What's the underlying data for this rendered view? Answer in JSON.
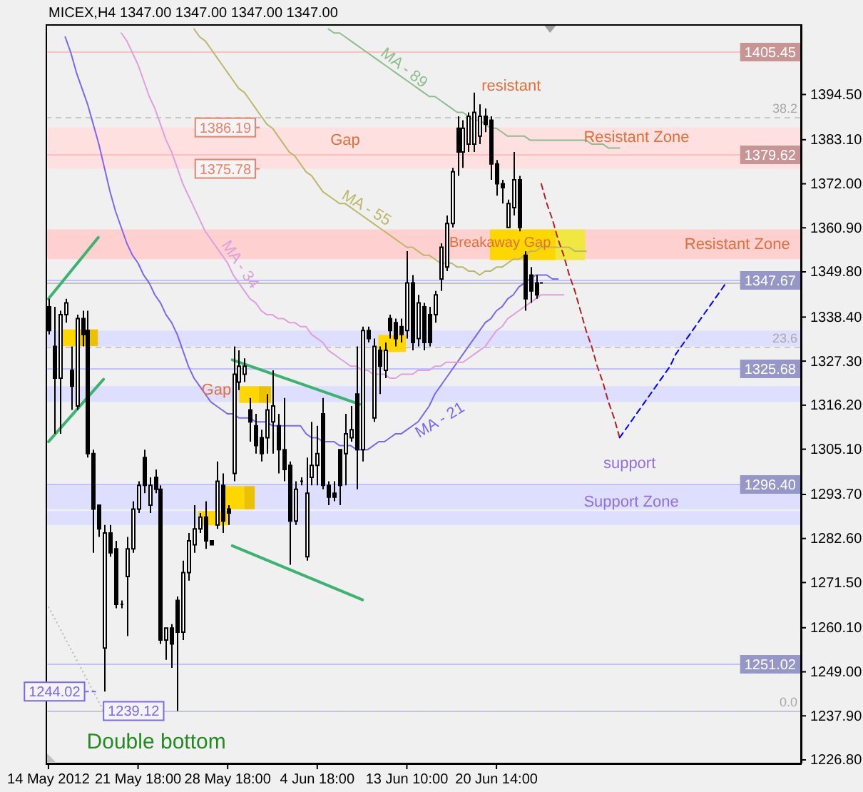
{
  "chart_data": {
    "type": "candlestick",
    "title": "MICEX,H4 1347.00 1347.00 1347.00 1347.00",
    "categories": [
      "14 May 2012",
      null,
      null,
      null,
      null,
      null,
      null,
      null,
      null,
      null,
      null,
      null,
      null,
      null,
      null,
      null,
      "21 May 18:00",
      null,
      null,
      null,
      null,
      null,
      null,
      null,
      null,
      null,
      null,
      null,
      null,
      null,
      null,
      null,
      "28 May 18:00",
      null,
      null,
      null,
      null,
      null,
      null,
      null,
      null,
      null,
      null,
      null,
      null,
      null,
      null,
      null,
      "4 Jun 18:00",
      null,
      null,
      null,
      null,
      null,
      null,
      null,
      null,
      null,
      null,
      null,
      null,
      null,
      null,
      null,
      "13 Jun 10:00",
      null,
      null,
      null,
      null,
      null,
      null,
      null,
      null,
      null,
      null,
      null,
      null,
      null,
      null,
      null,
      "20 Jun 14:00",
      null,
      null,
      null,
      null,
      null,
      null,
      null,
      null,
      null,
      null,
      null,
      null,
      null,
      null,
      null,
      null,
      null,
      null,
      null,
      null,
      null,
      null,
      null,
      null,
      null,
      null,
      null,
      null,
      null,
      null,
      null,
      null,
      null,
      null,
      null,
      null,
      null,
      null,
      null,
      null,
      null,
      null,
      null,
      null,
      null,
      null,
      null,
      null,
      null,
      null,
      null,
      null,
      null,
      null
    ],
    "ohlc": [
      [
        1341,
        1343,
        1334,
        1335
      ],
      [
        1331,
        1341,
        1309,
        1323
      ],
      [
        1323,
        1340,
        1309,
        1339
      ],
      [
        1339,
        1343,
        1337,
        1342
      ],
      [
        1325,
        1331,
        1315,
        1321
      ],
      [
        1316,
        1339,
        1315,
        1338
      ],
      [
        1338,
        1340,
        1331,
        1334
      ],
      [
        1335,
        1340,
        1303,
        1304
      ],
      [
        1304,
        1305,
        1279,
        1290
      ],
      [
        1291,
        1291,
        1283,
        1285
      ],
      [
        1255,
        1286,
        1244.02,
        1284
      ],
      [
        1284,
        1286,
        1278,
        1279
      ],
      [
        1280,
        1282,
        1265,
        1266
      ],
      [
        1266,
        1267,
        1265,
        1266
      ],
      [
        1273,
        1283,
        1258,
        1280
      ],
      [
        1280,
        1292,
        1279,
        1290
      ],
      [
        1290,
        1297,
        1289,
        1296
      ],
      [
        1303,
        1305,
        1294,
        1296
      ],
      [
        1291,
        1298,
        1289,
        1296
      ],
      [
        1298,
        1300,
        1294,
        1295
      ],
      [
        1295,
        1296,
        1256,
        1257
      ],
      [
        1257,
        1260,
        1252,
        1260
      ],
      [
        1260,
        1261,
        1250,
        1256
      ],
      [
        1267,
        1268,
        1239.12,
        1259
      ],
      [
        1259,
        1277,
        1257,
        1274
      ],
      [
        1274,
        1284,
        1272,
        1282
      ],
      [
        1281,
        1291,
        1279,
        1285
      ],
      [
        1285,
        1289,
        1284,
        1288
      ],
      [
        1288,
        1292,
        1280,
        1282
      ],
      [
        1282,
        1282,
        1281,
        1281
      ],
      [
        1286,
        1302,
        1285,
        1297
      ],
      [
        1296,
        1299,
        1284,
        1287
      ],
      [
        1290,
        1291,
        1286,
        1289
      ],
      [
        1299,
        1331,
        1297,
        1324
      ],
      [
        1322,
        1330,
        1320,
        1326
      ],
      [
        1324,
        1328,
        1322,
        1326
      ],
      [
        1315,
        1318,
        1307,
        1312
      ],
      [
        1311,
        1314,
        1304,
        1306
      ],
      [
        1308,
        1310,
        1302,
        1304
      ],
      [
        1308,
        1319,
        1304,
        1315
      ],
      [
        1312,
        1325,
        1304,
        1316
      ],
      [
        1311,
        1314,
        1299,
        1305
      ],
      [
        1305,
        1318,
        1297,
        1300
      ],
      [
        1301,
        1302,
        1276,
        1287
      ],
      [
        1287,
        1297,
        1286,
        1295
      ],
      [
        1297,
        1298,
        1296,
        1297
      ],
      [
        1278,
        1303,
        1277,
        1294
      ],
      [
        1298,
        1312,
        1296,
        1301
      ],
      [
        1301,
        1311,
        1296,
        1304
      ],
      [
        1314,
        1318,
        1295,
        1296
      ],
      [
        1296,
        1297,
        1291,
        1293
      ],
      [
        1294,
        1297,
        1292,
        1293
      ],
      [
        1305,
        1305,
        1291,
        1296
      ],
      [
        1304,
        1314,
        1296,
        1309
      ],
      [
        1308,
        1316,
        1307,
        1310
      ],
      [
        1319,
        1331,
        1295,
        1305
      ],
      [
        1305,
        1336,
        1302,
        1335
      ],
      [
        1335,
        1336,
        1332,
        1333
      ],
      [
        1313,
        1333,
        1312,
        1331
      ],
      [
        1330,
        1331,
        1319,
        1326
      ],
      [
        1325,
        1332,
        1323,
        1330
      ],
      [
        1338,
        1339,
        1333,
        1335
      ],
      [
        1337,
        1338,
        1331,
        1333
      ],
      [
        1336,
        1338,
        1332,
        1334
      ],
      [
        1335,
        1355,
        1333,
        1347
      ],
      [
        1347,
        1349,
        1330,
        1332
      ],
      [
        1333,
        1344,
        1331,
        1342
      ],
      [
        1341,
        1342,
        1330,
        1332
      ],
      [
        1339,
        1341,
        1331,
        1332
      ],
      [
        1339,
        1345,
        1337,
        1344
      ],
      [
        1348,
        1357,
        1345,
        1356
      ],
      [
        1351,
        1364,
        1350,
        1362
      ],
      [
        1362,
        1376,
        1361,
        1375
      ],
      [
        1386,
        1389,
        1374,
        1380
      ],
      [
        1380,
        1388,
        1376,
        1386
      ],
      [
        1382,
        1390,
        1380,
        1389
      ],
      [
        1382,
        1395,
        1380,
        1390
      ],
      [
        1384,
        1392,
        1382,
        1389
      ],
      [
        1389,
        1391,
        1385,
        1387
      ],
      [
        1388,
        1389,
        1373,
        1377
      ],
      [
        1377,
        1378,
        1369,
        1372
      ],
      [
        1372,
        1373,
        1367,
        1371
      ],
      [
        1361,
        1368,
        1361,
        1367
      ],
      [
        1366,
        1380,
        1364,
        1373
      ],
      [
        1373,
        1374,
        1360,
        1361
      ],
      [
        1354,
        1355,
        1340,
        1343
      ],
      [
        1349,
        1351,
        1342,
        1345
      ],
      [
        1347,
        1349,
        1343,
        1344
      ],
      [
        1347,
        1347,
        1347,
        1347
      ],
      null,
      null,
      null,
      null,
      null,
      null,
      null,
      null,
      null,
      null,
      null,
      null,
      null,
      null,
      null,
      null,
      null,
      null,
      null,
      null,
      null,
      null,
      null,
      null,
      null,
      null,
      null,
      null,
      null,
      null,
      null,
      null,
      null,
      null,
      null,
      null,
      null,
      null,
      null,
      null,
      null,
      null,
      null,
      null,
      null,
      null
    ],
    "series": [
      {
        "name": "MA - 21",
        "type": "line",
        "color": "#7b68ee",
        "values": [
          null,
          null,
          null,
          1409,
          1405,
          1400,
          1396,
          1392,
          1387,
          1382,
          1376,
          1370,
          1365,
          1361,
          1357,
          1354,
          1352,
          1349,
          1347,
          1344,
          1342,
          1339,
          1337,
          1334,
          1330,
          1326,
          1323,
          1321,
          1319,
          1317,
          1316,
          1315,
          1314,
          1314,
          1313,
          1313,
          1313,
          1312,
          1312,
          1312,
          1311,
          1311,
          1311,
          1311,
          1311,
          1311,
          1309,
          1308,
          1308,
          1307,
          1307,
          1307,
          1306,
          1306,
          1306,
          1305,
          1305,
          1305,
          1306,
          1307,
          1307,
          1308,
          1309,
          1309,
          1310,
          1311,
          1312,
          1314,
          1316,
          1319,
          1321,
          1323,
          1325,
          1327,
          1329,
          1331,
          1333,
          1335,
          1337,
          1338,
          1340,
          1341,
          1343,
          1344,
          1346,
          1347,
          1348,
          1349,
          1349,
          1349,
          1348,
          1348,
          null,
          null,
          null,
          null,
          null,
          null,
          null,
          null,
          null,
          null,
          null,
          null,
          null,
          null,
          null,
          null,
          null,
          null,
          null,
          null,
          null,
          null,
          null,
          null,
          null,
          null,
          null,
          null,
          null,
          null,
          null,
          null,
          null,
          null,
          null,
          null,
          null,
          null,
          null,
          null,
          null,
          null,
          null
        ]
      },
      {
        "name": "MA - 34",
        "type": "line",
        "color": "#dda0dd",
        "values": [
          null,
          null,
          null,
          null,
          null,
          null,
          null,
          null,
          null,
          null,
          null,
          null,
          null,
          1410,
          1408,
          1405,
          1402,
          1398,
          1394,
          1391,
          1387,
          1383,
          1380,
          1376,
          1372,
          1369,
          1366,
          1363,
          1360,
          1358,
          1356,
          1354,
          1352,
          1349,
          1347,
          1345,
          1343,
          1342,
          1340,
          1339,
          1339,
          1338,
          1338,
          1337,
          1337,
          1336,
          1336,
          1334,
          1333,
          1332,
          1330,
          1329,
          1328,
          1327,
          1326,
          1326,
          1325,
          1325,
          1324,
          1324,
          1324,
          1323,
          1323,
          1324,
          1324,
          1324,
          1325,
          1325,
          1325,
          1326,
          1326,
          1327,
          1327,
          1327,
          1327,
          1328,
          1329,
          1330,
          1331,
          1333,
          1335,
          1336,
          1338,
          1339,
          1340,
          1341,
          1342,
          1343,
          1344,
          1344,
          1344,
          1344,
          1344,
          null,
          null,
          null,
          null,
          null,
          null,
          null,
          null,
          null,
          null,
          null,
          null,
          null,
          null,
          null,
          null,
          null,
          null,
          null,
          null,
          null,
          null,
          null,
          null,
          null,
          null,
          null,
          null,
          null,
          null,
          null,
          null,
          null,
          null,
          null,
          null,
          null,
          null,
          null,
          null,
          null,
          null
        ]
      },
      {
        "name": "MA - 55",
        "type": "line",
        "color": "#bdb76b",
        "values": [
          null,
          null,
          null,
          null,
          null,
          null,
          null,
          null,
          null,
          null,
          null,
          null,
          null,
          null,
          null,
          null,
          null,
          null,
          null,
          null,
          null,
          null,
          null,
          null,
          null,
          null,
          1411,
          1409,
          1408,
          1406,
          1404,
          1402,
          1400,
          1398,
          1396,
          1395,
          1393,
          1391,
          1389,
          1387,
          1386,
          1384,
          1382,
          1380,
          1379,
          1377,
          1375,
          1374,
          1372,
          1370,
          1369,
          1368,
          1367,
          1367,
          1366,
          1365,
          1364,
          1363,
          1362,
          1361,
          1360,
          1359,
          1358,
          1357,
          1356,
          1356,
          1355,
          1354,
          1354,
          1353,
          1352,
          1352,
          1352,
          1351,
          1351,
          1350,
          1350,
          1349,
          1350,
          1350,
          1351,
          1351,
          1352,
          1353,
          1353,
          1354,
          1355,
          1355,
          1356,
          1356,
          1356,
          1356,
          1356,
          1356,
          1355,
          1355,
          1355,
          null,
          null,
          null,
          null,
          null,
          null,
          null,
          null,
          null,
          null,
          null,
          null,
          null,
          null,
          null,
          null,
          null,
          null,
          null,
          null,
          null,
          null,
          null,
          null,
          null,
          null,
          null,
          null,
          null,
          null,
          null,
          null,
          null,
          null,
          null,
          null,
          null,
          null
        ]
      },
      {
        "name": "MA - 89",
        "type": "line",
        "color": "#8fbc8f",
        "values": [
          null,
          null,
          null,
          null,
          null,
          null,
          null,
          null,
          null,
          null,
          null,
          null,
          null,
          null,
          null,
          null,
          null,
          null,
          null,
          null,
          null,
          null,
          null,
          null,
          null,
          null,
          null,
          null,
          null,
          null,
          null,
          null,
          null,
          null,
          null,
          null,
          null,
          null,
          null,
          null,
          null,
          null,
          null,
          null,
          null,
          null,
          null,
          null,
          null,
          null,
          1411,
          1410,
          1410,
          1409,
          1408,
          1407,
          1406,
          1405,
          1404,
          1403,
          1402,
          1401,
          1400,
          1399,
          1398,
          1397,
          1396,
          1395,
          1394,
          1394,
          1393,
          1392,
          1391,
          1390,
          1390,
          1389,
          1388,
          1388,
          1387,
          1386,
          1386,
          1385,
          1384,
          1384,
          1384,
          1384,
          1383,
          1383,
          1383,
          1383,
          1383,
          1383,
          1383,
          1383,
          1383,
          1383,
          1383,
          1382,
          1382,
          1382,
          1381,
          1381,
          1381,
          null,
          null,
          null,
          null,
          null,
          null,
          null,
          null,
          null,
          null,
          null,
          null,
          null,
          null,
          null,
          null,
          null,
          null,
          null,
          null,
          null,
          null,
          null,
          null,
          null,
          null,
          null,
          null,
          null,
          null,
          null,
          null
        ]
      },
      {
        "type": "line",
        "color": "#b22222",
        "line_style": "dashed",
        "values": [
          null,
          null,
          null,
          null,
          null,
          null,
          null,
          null,
          null,
          null,
          null,
          null,
          null,
          null,
          null,
          null,
          null,
          null,
          null,
          null,
          null,
          null,
          null,
          null,
          null,
          null,
          null,
          null,
          null,
          null,
          null,
          null,
          null,
          null,
          null,
          null,
          null,
          null,
          null,
          null,
          null,
          null,
          null,
          null,
          null,
          null,
          null,
          null,
          null,
          null,
          null,
          null,
          null,
          null,
          null,
          null,
          null,
          null,
          null,
          null,
          null,
          null,
          null,
          null,
          null,
          null,
          null,
          null,
          null,
          null,
          null,
          null,
          null,
          null,
          null,
          null,
          null,
          null,
          null,
          null,
          null,
          null,
          null,
          null,
          null,
          null,
          null,
          null,
          1372,
          1367,
          1363,
          1358,
          1354,
          1349,
          1345,
          1340,
          1335,
          1331,
          1326,
          1322,
          1317,
          1313,
          1308,
          null,
          null,
          null,
          null,
          null,
          null,
          null,
          null,
          null,
          null,
          null,
          null,
          null,
          null,
          null,
          null,
          null,
          null,
          null,
          null,
          null,
          null,
          null,
          null,
          null,
          null,
          null,
          null,
          null,
          null,
          null,
          null
        ]
      },
      {
        "type": "line",
        "color": "#0000ff",
        "line_style": "dashed",
        "values": [
          null,
          null,
          null,
          null,
          null,
          null,
          null,
          null,
          null,
          null,
          null,
          null,
          null,
          null,
          null,
          null,
          null,
          null,
          null,
          null,
          null,
          null,
          null,
          null,
          null,
          null,
          null,
          null,
          null,
          null,
          null,
          null,
          null,
          null,
          null,
          null,
          null,
          null,
          null,
          null,
          null,
          null,
          null,
          null,
          null,
          null,
          null,
          null,
          null,
          null,
          null,
          null,
          null,
          null,
          null,
          null,
          null,
          null,
          null,
          null,
          null,
          null,
          null,
          null,
          null,
          null,
          null,
          null,
          null,
          null,
          null,
          null,
          null,
          null,
          null,
          null,
          null,
          null,
          null,
          null,
          null,
          null,
          null,
          null,
          null,
          null,
          null,
          null,
          null,
          null,
          null,
          null,
          null,
          null,
          null,
          null,
          null,
          null,
          null,
          null,
          null,
          null,
          1308,
          1310,
          1312,
          1314,
          1316,
          1318,
          1320,
          1322,
          1324,
          1326,
          1329,
          1331,
          1333,
          1335,
          1337,
          1339,
          1341,
          1343,
          1345,
          1347,
          null,
          null,
          null,
          null,
          null,
          null,
          null,
          null,
          null,
          null,
          null,
          null,
          null
        ]
      }
    ],
    "ylim": [
      1225.9,
      1412.2
    ],
    "yticks": [
      {
        "value": 1226.8,
        "label": "1226.80"
      },
      {
        "value": 1237.9,
        "label": "1237.90"
      },
      {
        "value": 1249,
        "label": "1249.00"
      },
      {
        "value": 1260.1,
        "label": "1260.10"
      },
      {
        "value": 1271.5,
        "label": "1271.50"
      },
      {
        "value": 1282.6,
        "label": "1282.60"
      },
      {
        "value": 1293.7,
        "label": "1293.70"
      },
      {
        "value": 1305.1,
        "label": "1305.10"
      },
      {
        "value": 1316.2,
        "label": "1316.20"
      },
      {
        "value": 1327.3,
        "label": "1327.30"
      },
      {
        "value": 1338.4,
        "label": "1338.40"
      },
      {
        "value": 1349.8,
        "label": "1349.80"
      },
      {
        "value": 1360.9,
        "label": "1360.90"
      },
      {
        "value": 1372,
        "label": "1372.00"
      },
      {
        "value": 1383.1,
        "label": "1383.10"
      },
      {
        "value": 1394.5,
        "label": "1394.50"
      }
    ],
    "bands": [
      {
        "axis": "y",
        "from": 1375.78,
        "to": 1386.19,
        "label": "Resistant Zone",
        "color": "#ffe0e0"
      },
      {
        "axis": "y",
        "from": 1353,
        "to": 1360.5,
        "label": "Resistant Zone",
        "color": "#ffd0d0"
      },
      {
        "axis": "y",
        "from": 1331,
        "to": 1335,
        "color": "#dedeff"
      },
      {
        "axis": "y",
        "from": 1317,
        "to": 1321,
        "color": "#dedeff"
      },
      {
        "axis": "y",
        "from": 1290,
        "to": 1296,
        "label": "Support Zone",
        "color": "#dedeff"
      },
      {
        "axis": "y",
        "from": 1286,
        "to": 1289.5,
        "color": "#dedeff"
      }
    ],
    "ref_lines": [
      {
        "axis": "y",
        "value": 1405.45,
        "label": "1405.45",
        "color": "#ffbfbf"
      },
      {
        "axis": "y",
        "value": 1379.62,
        "label": "1379.62",
        "color": "#ffbfbf"
      },
      {
        "axis": "y",
        "value": 1347.67,
        "label": "1347.67",
        "color": "#c0c0ff"
      },
      {
        "axis": "y",
        "value": 1325.68,
        "label": "1325.68",
        "color": "#c0c0ff"
      },
      {
        "axis": "y",
        "value": 1296.4,
        "label": "1296.40",
        "color": "#c0c0ff"
      },
      {
        "axis": "y",
        "value": 1251.02,
        "label": "1251.02",
        "color": "#c0c0ff"
      },
      {
        "axis": "y",
        "value": 1239.12,
        "color": "#c0c0ff"
      },
      {
        "axis": "y",
        "value": 1347,
        "color": "#c0c0c0"
      },
      {
        "axis": "y",
        "value": 1389,
        "color": "#c8c8c8",
        "line_style": "dashed"
      },
      {
        "axis": "y",
        "value": 1331,
        "color": "#c8c8c8",
        "line_style": "dashed"
      },
      {
        "axis": "y",
        "value": 1239.12,
        "color": "#c8c8c8",
        "line_style": "dashed"
      }
    ],
    "annotations": [
      {
        "text": "1386.19",
        "y": 1386.19
      },
      {
        "text": "1375.78",
        "y": 1375.78
      },
      {
        "text": "1244.02",
        "y": 1244.02
      },
      {
        "text": "1239.12",
        "y": 1239.12
      },
      {
        "text": "38.2",
        "y": 1389
      },
      {
        "text": "23.6",
        "y": 1331
      },
      {
        "text": "0.0",
        "y": 1239.12
      },
      "Gap",
      "resistant",
      "Breakaway Gap",
      "Gap",
      "support",
      "Double bottom"
    ]
  }
}
